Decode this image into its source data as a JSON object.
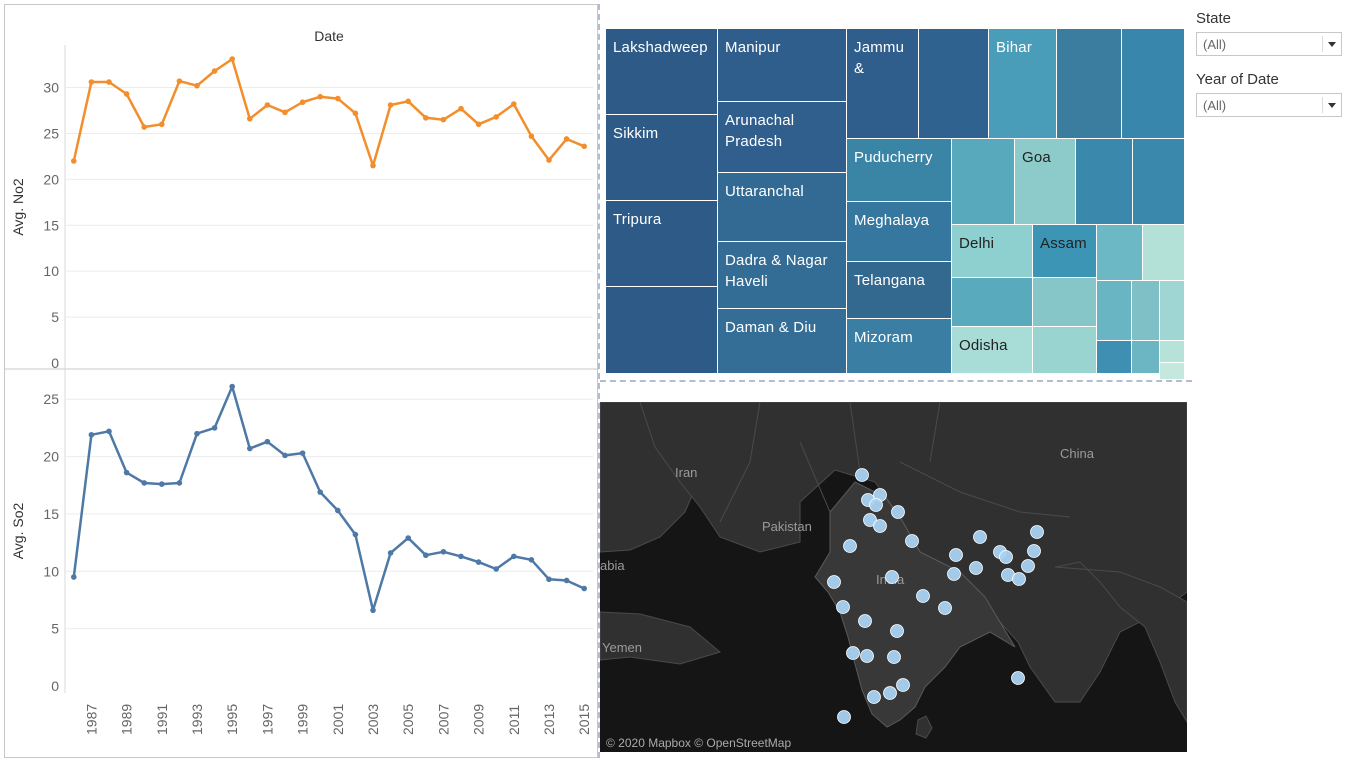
{
  "chart_data": [
    {
      "type": "line",
      "title": "Date",
      "ylabel": "Avg. No2",
      "ylim": [
        0,
        35
      ],
      "yticks": [
        0,
        5,
        10,
        15,
        20,
        25,
        30
      ],
      "color": "#f28e2b",
      "x": [
        1986,
        1987,
        1988,
        1989,
        1990,
        1991,
        1992,
        1993,
        1994,
        1995,
        1996,
        1997,
        1998,
        1999,
        2000,
        2001,
        2002,
        2003,
        2004,
        2005,
        2006,
        2007,
        2008,
        2009,
        2010,
        2011,
        2012,
        2013,
        2014,
        2015
      ],
      "values": [
        22.0,
        30.6,
        30.6,
        29.3,
        25.7,
        26.0,
        30.7,
        30.2,
        31.8,
        33.1,
        26.6,
        28.1,
        27.3,
        28.4,
        29.0,
        28.8,
        27.2,
        21.5,
        28.1,
        28.5,
        26.7,
        26.5,
        27.7,
        26.0,
        26.8,
        28.2,
        24.7,
        22.1,
        24.4,
        23.6
      ]
    },
    {
      "type": "line",
      "ylabel": "Avg. So2",
      "ylim": [
        0,
        27
      ],
      "yticks": [
        0,
        5,
        10,
        15,
        20,
        25
      ],
      "color": "#4e79a7",
      "x": [
        1986,
        1987,
        1988,
        1989,
        1990,
        1991,
        1992,
        1993,
        1994,
        1995,
        1996,
        1997,
        1998,
        1999,
        2000,
        2001,
        2002,
        2003,
        2004,
        2005,
        2006,
        2007,
        2008,
        2009,
        2010,
        2011,
        2012,
        2013,
        2014,
        2015
      ],
      "values": [
        9.5,
        21.9,
        22.2,
        18.6,
        17.7,
        17.6,
        17.7,
        22.0,
        22.5,
        26.1,
        20.7,
        21.3,
        20.1,
        20.3,
        16.9,
        15.3,
        13.2,
        6.6,
        11.6,
        12.9,
        11.4,
        11.7,
        11.3,
        10.8,
        10.2,
        11.3,
        11.0,
        9.3,
        9.2,
        8.5
      ],
      "xticks": [
        "1987",
        "1989",
        "1991",
        "1993",
        "1995",
        "1997",
        "1999",
        "2001",
        "2003",
        "2005",
        "2007",
        "2009",
        "2011",
        "2013",
        "2015"
      ]
    }
  ],
  "treemap": {
    "cells": [
      {
        "label": "Lakshadweep",
        "color": "#2e5a87",
        "light": false
      },
      {
        "label": "Sikkim",
        "color": "#2e5a87",
        "light": false
      },
      {
        "label": "Tripura",
        "color": "#2e5a87",
        "light": false
      },
      {
        "label": "",
        "color": "#2e5a87",
        "light": false
      },
      {
        "label": "Manipur",
        "color": "#2f5e8c",
        "light": false
      },
      {
        "label": "Arunachal Pradesh",
        "color": "#305f8d",
        "light": false
      },
      {
        "label": "Uttaranchal",
        "color": "#336a93",
        "light": false
      },
      {
        "label": "Dadra & Nagar Haveli",
        "color": "#336c95",
        "light": false
      },
      {
        "label": "Daman & Diu",
        "color": "#346e96",
        "light": false
      },
      {
        "label": "Jammu &",
        "color": "#2f5e8c",
        "light": false
      },
      {
        "label": "",
        "color": "#30628f",
        "light": false
      },
      {
        "label": "Bihar",
        "color": "#4a9db8",
        "light": false
      },
      {
        "label": "",
        "color": "#3a7d9f",
        "light": false
      },
      {
        "label": "",
        "color": "#3886ab",
        "light": false
      },
      {
        "label": "Puducherry",
        "color": "#3a84a5",
        "light": false
      },
      {
        "label": "Meghalaya",
        "color": "#3677a0",
        "light": false
      },
      {
        "label": "Telangana",
        "color": "#33688f",
        "light": false
      },
      {
        "label": "Mizoram",
        "color": "#3a7ea3",
        "light": false
      },
      {
        "label": "",
        "color": "#59a9bd",
        "light": true
      },
      {
        "label": "Goa",
        "color": "#8ccbc9",
        "light": true
      },
      {
        "label": "",
        "color": "#3a89ac",
        "light": false
      },
      {
        "label": "",
        "color": "#3a89ac",
        "light": false
      },
      {
        "label": "Delhi",
        "color": "#8ecfcf",
        "light": true
      },
      {
        "label": "Assam",
        "color": "#3d95b5",
        "light": true
      },
      {
        "label": "",
        "color": "#6db8c5",
        "light": true
      },
      {
        "label": "",
        "color": "#b3e1d8",
        "light": true
      },
      {
        "label": "",
        "color": "#5aaabe",
        "light": true
      },
      {
        "label": "",
        "color": "#86c6c9",
        "light": true
      },
      {
        "label": "",
        "color": "#6ab5c3",
        "light": true
      },
      {
        "label": "",
        "color": "#7ec0c6",
        "light": true
      },
      {
        "label": "",
        "color": "#9fd6d3",
        "light": true
      },
      {
        "label": "Odisha",
        "color": "#a8dcd6",
        "light": true
      },
      {
        "label": "",
        "color": "#9ad4d1",
        "light": true
      },
      {
        "label": "",
        "color": "#3f8fb2",
        "light": false
      },
      {
        "label": "",
        "color": "#6cb5c3",
        "light": true
      },
      {
        "label": "",
        "color": "#b6e2d9",
        "light": true
      },
      {
        "label": "",
        "color": "#c4e8de",
        "light": true
      }
    ]
  },
  "map": {
    "labels": [
      "Iran",
      "Pakistan",
      "India",
      "China",
      "abia",
      "Yemen"
    ],
    "credit": "© 2020 Mapbox © OpenStreetMap",
    "marker_color": "#a9d3f2",
    "markers": [
      [
        862,
        475
      ],
      [
        868,
        500
      ],
      [
        880,
        495
      ],
      [
        876,
        505
      ],
      [
        870,
        520
      ],
      [
        880,
        526
      ],
      [
        898,
        512
      ],
      [
        850,
        546
      ],
      [
        912,
        541
      ],
      [
        980,
        537
      ],
      [
        1037,
        532
      ],
      [
        1000,
        552
      ],
      [
        1006,
        557
      ],
      [
        1034,
        551
      ],
      [
        956,
        555
      ],
      [
        1028,
        566
      ],
      [
        976,
        568
      ],
      [
        954,
        574
      ],
      [
        1008,
        575
      ],
      [
        1019,
        579
      ],
      [
        892,
        577
      ],
      [
        834,
        582
      ],
      [
        923,
        596
      ],
      [
        843,
        607
      ],
      [
        945,
        608
      ],
      [
        865,
        621
      ],
      [
        897,
        631
      ],
      [
        853,
        653
      ],
      [
        867,
        656
      ],
      [
        894,
        657
      ],
      [
        903,
        685
      ],
      [
        890,
        693
      ],
      [
        874,
        697
      ],
      [
        844,
        717
      ],
      [
        1018,
        678
      ]
    ]
  },
  "filters": [
    {
      "title": "State",
      "value": "(All)"
    },
    {
      "title": "Year of Date",
      "value": "(All)"
    }
  ]
}
